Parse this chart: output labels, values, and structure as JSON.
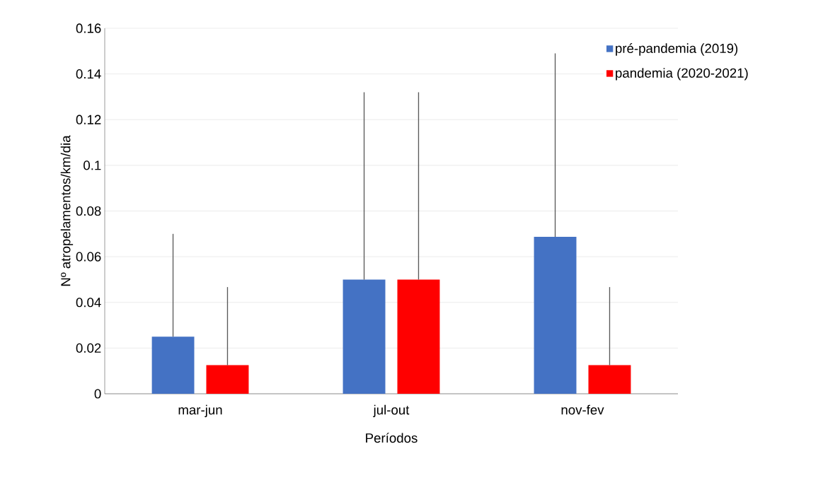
{
  "chart_data": {
    "type": "bar",
    "xlabel": "Períodos",
    "ylabel": "Nº atropelamentos/km/dia",
    "categories": [
      "mar-jun",
      "jul-out",
      "nov-fev"
    ],
    "series": [
      {
        "name": "pré-pandemia (2019)",
        "color": "#4472c4",
        "values": [
          0.025,
          0.05,
          0.0687
        ],
        "errors": [
          [
            0.025,
            0.07
          ],
          [
            0.05,
            0.132
          ],
          [
            0.0687,
            0.149
          ]
        ]
      },
      {
        "name": "pandemia (2020-2021)",
        "color": "#ff0000",
        "values": [
          0.0125,
          0.05,
          0.0125
        ],
        "errors": [
          [
            0.0125,
            0.0467
          ],
          [
            0.05,
            0.132
          ],
          [
            0.0125,
            0.0467
          ]
        ]
      }
    ],
    "ylim": [
      0,
      0.16
    ],
    "yticks": [
      0,
      0.02,
      0.04,
      0.06,
      0.08,
      0.1,
      0.12,
      0.14,
      0.16
    ],
    "grid": "y",
    "legend": "top right"
  }
}
